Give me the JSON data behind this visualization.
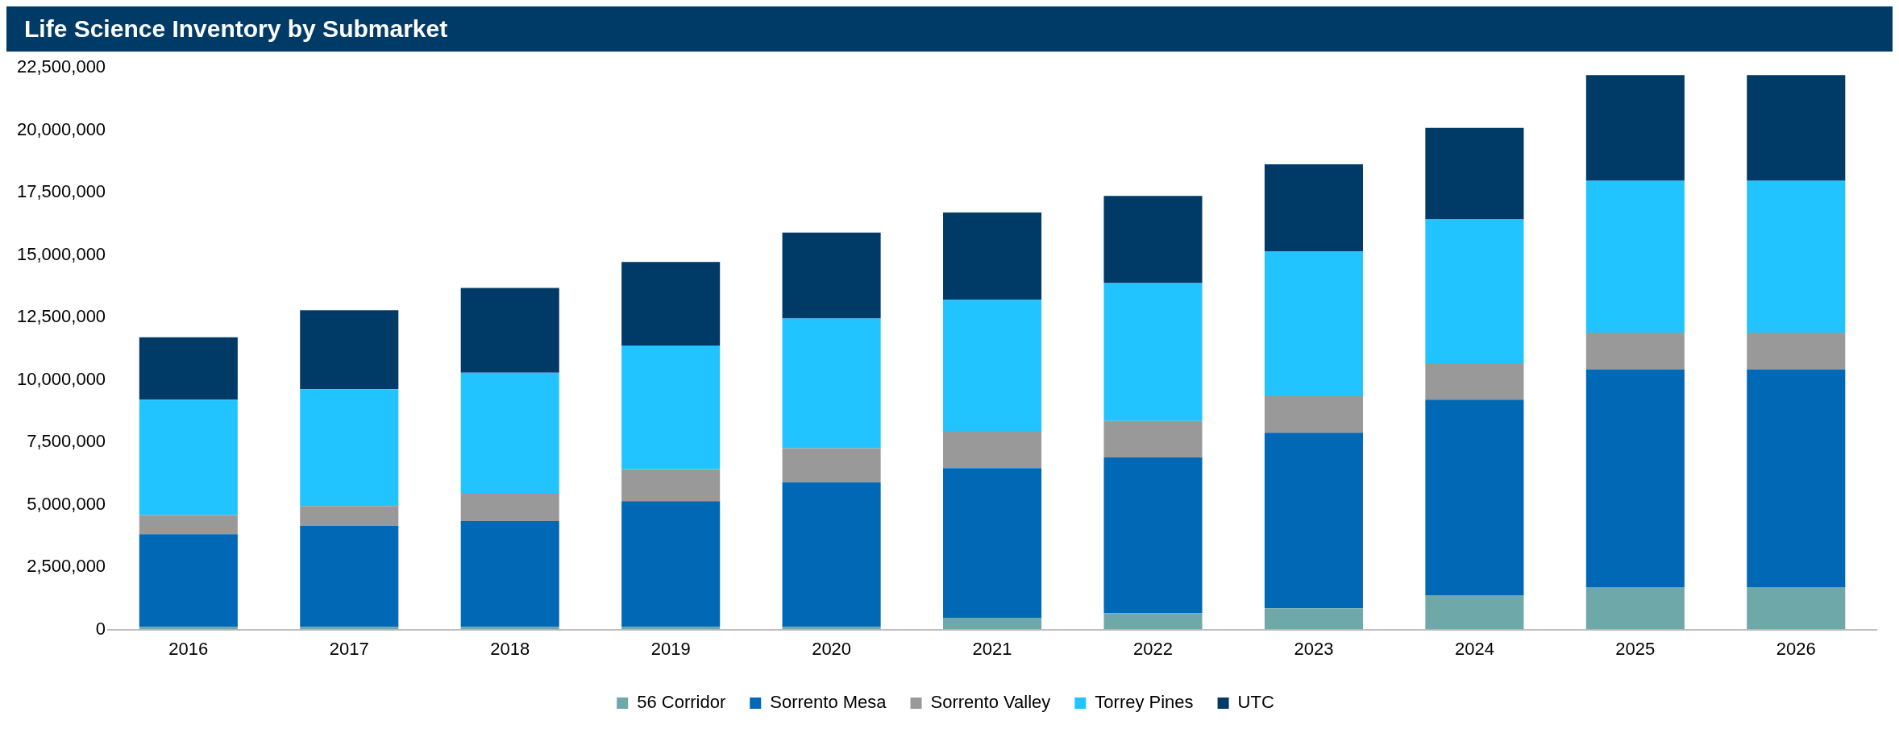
{
  "chart_data": {
    "type": "bar",
    "title": "Life Science Inventory by Submarket",
    "stacked": true,
    "grid": false,
    "legend": "bottom",
    "categories": [
      "2016",
      "2017",
      "2018",
      "2019",
      "2020",
      "2021",
      "2022",
      "2023",
      "2024",
      "2025",
      "2026"
    ],
    "ylim": [
      0,
      22500000
    ],
    "yticks": [
      0,
      {
        "value": 2500000,
        "label": "2,500,000"
      },
      {
        "value": 5000000,
        "label": "5,000,000"
      },
      {
        "value": 7500000,
        "label": "7,500,000"
      },
      {
        "value": 10000000,
        "label": "10,000,000"
      },
      {
        "value": 12500000,
        "label": "12,500,000"
      },
      {
        "value": 15000000,
        "label": "15,000,000"
      },
      {
        "value": 17500000,
        "label": "17,500,000"
      },
      {
        "value": 20000000,
        "label": "20,000,000"
      },
      {
        "value": 22500000,
        "label": "22,500,000"
      }
    ],
    "series": [
      {
        "name": "56 Corridor",
        "color": "#6fa8a8",
        "values": [
          100000,
          100000,
          100000,
          100000,
          100000,
          470000,
          660000,
          850000,
          1370000,
          1700000,
          1700000
        ]
      },
      {
        "name": "Sorrento Mesa",
        "color": "#0068b4",
        "values": [
          3720000,
          4050000,
          4240000,
          5040000,
          5800000,
          5990000,
          6230000,
          7030000,
          7830000,
          8720000,
          8720000
        ]
      },
      {
        "name": "Sorrento Valley",
        "color": "#999999",
        "values": [
          760000,
          800000,
          1130000,
          1280000,
          1360000,
          1460000,
          1460000,
          1460000,
          1460000,
          1470000,
          1470000
        ]
      },
      {
        "name": "Torrey Pines",
        "color": "#22c4ff",
        "values": [
          4620000,
          4670000,
          4810000,
          4950000,
          5190000,
          5280000,
          5520000,
          5800000,
          5760000,
          6080000,
          6080000
        ]
      },
      {
        "name": "UTC",
        "color": "#003a66",
        "values": [
          2500000,
          3160000,
          3400000,
          3350000,
          3450000,
          3500000,
          3490000,
          3490000,
          3670000,
          4230000,
          4230000
        ]
      }
    ]
  }
}
